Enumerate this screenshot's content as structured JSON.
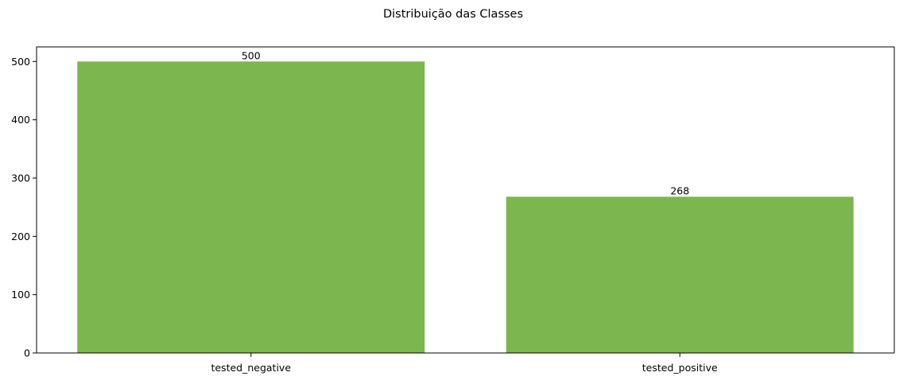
{
  "chart_data": {
    "type": "bar",
    "title": "Distribuição das Classes",
    "categories": [
      "tested_negative",
      "tested_positive"
    ],
    "values": [
      500,
      268
    ],
    "data_labels": [
      "500",
      "268"
    ],
    "ylim": [
      0,
      525
    ],
    "yticks": [
      0,
      100,
      200,
      300,
      400,
      500
    ],
    "bar_color": "#7cb64e",
    "grid": false,
    "legend": "none"
  }
}
